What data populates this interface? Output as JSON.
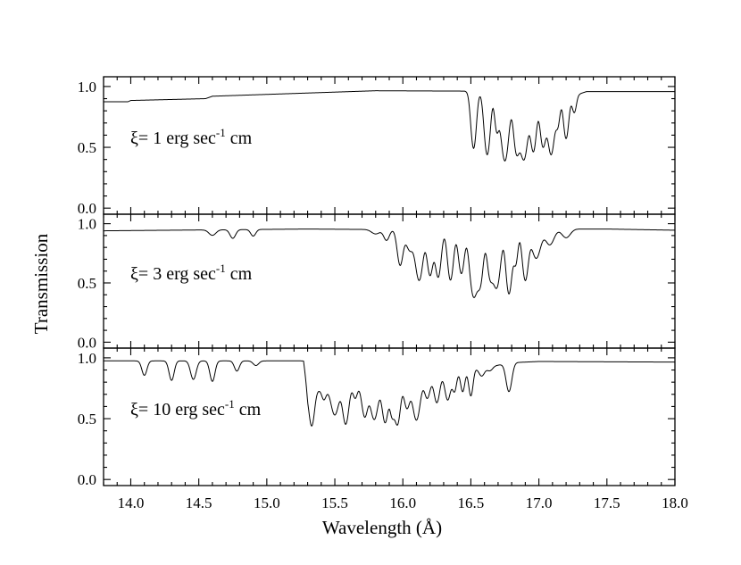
{
  "chart_data": {
    "type": "line",
    "xlabel": "Wavelength (Å)",
    "ylabel": "Transmission",
    "xlim": [
      13.8,
      18.0
    ],
    "x_ticks": [
      "14.0",
      "14.5",
      "15.0",
      "15.5",
      "16.0",
      "16.5",
      "17.0",
      "17.5",
      "18.0"
    ],
    "y_ticks": [
      "0.0",
      "0.5",
      "1.0"
    ],
    "grid": false,
    "legend": "none",
    "panels": [
      {
        "label_prefix": "ξ= 1 erg sec",
        "label_exp": "-1",
        "label_suffix": " cm",
        "ylim": [
          -0.05,
          1.08
        ],
        "continuum": [
          [
            13.8,
            0.875
          ],
          [
            13.98,
            0.875
          ],
          [
            14.0,
            0.885
          ],
          [
            14.55,
            0.9
          ],
          [
            14.6,
            0.92
          ],
          [
            15.8,
            0.965
          ],
          [
            16.45,
            0.962
          ],
          [
            17.3,
            0.94
          ],
          [
            17.35,
            0.958
          ],
          [
            18.0,
            0.958
          ]
        ],
        "lines": [
          [
            16.52,
            0.67,
            0.018
          ],
          [
            16.62,
            0.78,
            0.02
          ],
          [
            16.69,
            0.38,
            0.015
          ],
          [
            16.75,
            0.9,
            0.025
          ],
          [
            16.835,
            0.7,
            0.02
          ],
          [
            16.89,
            0.86,
            0.025
          ],
          [
            16.96,
            0.7,
            0.02
          ],
          [
            17.03,
            0.62,
            0.02
          ],
          [
            17.09,
            0.76,
            0.022
          ],
          [
            17.14,
            0.3,
            0.015
          ],
          [
            17.2,
            0.5,
            0.018
          ],
          [
            17.26,
            0.18,
            0.015
          ]
        ]
      },
      {
        "label_prefix": "ξ= 3 erg sec",
        "label_exp": "-1",
        "label_suffix": " cm",
        "ylim": [
          -0.05,
          1.08
        ],
        "continuum": [
          [
            13.8,
            0.94
          ],
          [
            15.3,
            0.955
          ],
          [
            15.9,
            0.95
          ],
          [
            16.4,
            0.955
          ],
          [
            17.5,
            0.955
          ],
          [
            18.0,
            0.945
          ]
        ],
        "lines": [
          [
            14.6,
            0.05,
            0.025
          ],
          [
            14.75,
            0.08,
            0.02
          ],
          [
            14.9,
            0.06,
            0.018
          ],
          [
            15.8,
            0.04,
            0.03
          ],
          [
            15.88,
            0.1,
            0.02
          ],
          [
            15.98,
            0.38,
            0.02
          ],
          [
            16.05,
            0.2,
            0.025
          ],
          [
            16.12,
            0.6,
            0.025
          ],
          [
            16.2,
            0.52,
            0.02
          ],
          [
            16.26,
            0.55,
            0.02
          ],
          [
            16.35,
            0.6,
            0.02
          ],
          [
            16.43,
            0.5,
            0.02
          ],
          [
            16.52,
            0.9,
            0.025
          ],
          [
            16.57,
            0.6,
            0.02
          ],
          [
            16.64,
            0.5,
            0.02
          ],
          [
            16.69,
            0.72,
            0.025
          ],
          [
            16.78,
            0.85,
            0.02
          ],
          [
            16.83,
            0.35,
            0.015
          ],
          [
            16.9,
            0.6,
            0.02
          ],
          [
            16.98,
            0.3,
            0.03
          ],
          [
            17.08,
            0.15,
            0.03
          ],
          [
            17.2,
            0.08,
            0.03
          ]
        ]
      },
      {
        "label_prefix": "ξ= 10 erg sec",
        "label_exp": "-1",
        "label_suffix": " cm",
        "ylim": [
          -0.05,
          1.08
        ],
        "continuum": [
          [
            13.8,
            0.975
          ],
          [
            15.27,
            0.975
          ],
          [
            15.3,
            0.72
          ],
          [
            16.7,
            0.94
          ],
          [
            16.8,
            0.96
          ],
          [
            17.0,
            0.97
          ],
          [
            18.0,
            0.965
          ]
        ],
        "lines": [
          [
            14.1,
            0.13,
            0.018
          ],
          [
            14.3,
            0.18,
            0.018
          ],
          [
            14.46,
            0.17,
            0.02
          ],
          [
            14.6,
            0.19,
            0.018
          ],
          [
            14.78,
            0.09,
            0.018
          ],
          [
            14.92,
            0.04,
            0.02
          ],
          [
            15.33,
            0.5,
            0.018
          ],
          [
            15.42,
            0.12,
            0.015
          ],
          [
            15.5,
            0.35,
            0.025
          ],
          [
            15.58,
            0.52,
            0.02
          ],
          [
            15.65,
            0.15,
            0.015
          ],
          [
            15.72,
            0.42,
            0.02
          ],
          [
            15.79,
            0.48,
            0.025
          ],
          [
            15.87,
            0.55,
            0.02
          ],
          [
            15.92,
            0.38,
            0.015
          ],
          [
            15.96,
            0.6,
            0.02
          ],
          [
            16.03,
            0.35,
            0.02
          ],
          [
            16.1,
            0.55,
            0.025
          ],
          [
            16.18,
            0.25,
            0.02
          ],
          [
            16.25,
            0.32,
            0.02
          ],
          [
            16.33,
            0.3,
            0.02
          ],
          [
            16.38,
            0.2,
            0.015
          ],
          [
            16.44,
            0.22,
            0.015
          ],
          [
            16.5,
            0.28,
            0.015
          ],
          [
            16.58,
            0.08,
            0.02
          ],
          [
            16.64,
            0.04,
            0.02
          ],
          [
            16.78,
            0.28,
            0.02
          ]
        ]
      }
    ]
  }
}
